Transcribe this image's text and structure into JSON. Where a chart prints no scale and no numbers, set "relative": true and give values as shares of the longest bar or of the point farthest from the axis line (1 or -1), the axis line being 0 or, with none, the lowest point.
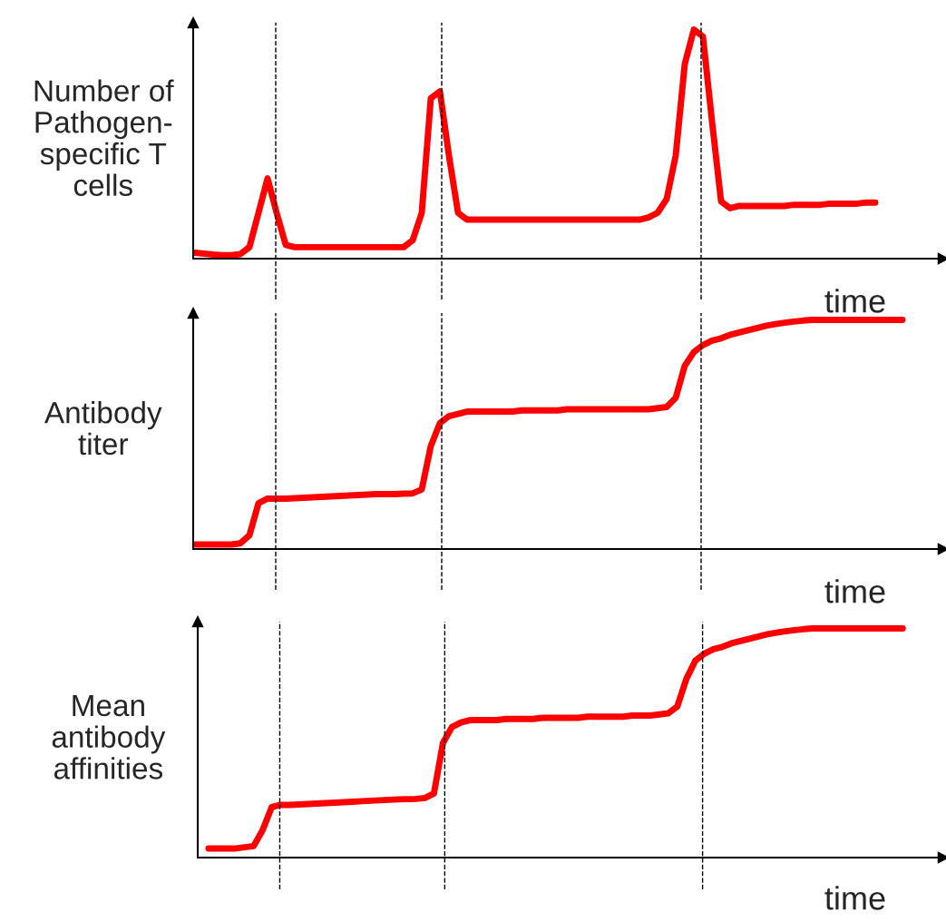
{
  "chart_data": [
    {
      "type": "line",
      "relative": true,
      "ylabel": "Number of\nPathogen-\nspecific T\ncells",
      "xlabel": "time",
      "tick_labels": false,
      "marker": "none",
      "line_style": "solid",
      "categories": [
        null,
        null,
        null,
        null,
        null,
        null,
        null,
        null,
        null,
        null,
        null,
        null,
        null,
        null,
        null,
        null,
        null,
        null,
        null,
        null,
        null,
        null,
        null,
        null,
        null,
        null,
        null,
        null,
        null,
        null,
        null,
        null,
        null,
        null,
        null,
        null,
        null,
        null,
        null,
        null,
        null,
        null,
        null,
        null,
        null,
        null,
        null,
        null,
        null,
        null,
        null,
        null,
        null,
        null,
        null,
        null,
        null,
        null,
        null,
        null,
        null,
        null,
        null,
        null,
        null,
        null,
        null,
        null,
        null,
        null,
        null,
        null,
        null,
        null,
        null,
        null,
        null,
        null,
        null,
        null
      ],
      "series": [
        {
          "color": "#ff0000",
          "values": [
            0.026,
            0.022,
            0.018,
            0.015,
            0.015,
            0.02,
            0.05,
            0.2,
            0.35,
            0.2,
            0.06,
            0.05,
            0.05,
            0.05,
            0.05,
            0.05,
            0.05,
            0.05,
            0.05,
            0.05,
            0.05,
            0.05,
            0.05,
            0.05,
            0.08,
            0.2,
            0.7,
            0.73,
            0.45,
            0.2,
            0.17,
            0.17,
            0.17,
            0.17,
            0.17,
            0.17,
            0.17,
            0.17,
            0.17,
            0.17,
            0.17,
            0.17,
            0.17,
            0.17,
            0.17,
            0.17,
            0.17,
            0.17,
            0.17,
            0.17,
            0.18,
            0.2,
            0.26,
            0.45,
            0.85,
            1.0,
            0.97,
            0.6,
            0.25,
            0.22,
            0.23,
            0.23,
            0.23,
            0.23,
            0.23,
            0.23,
            0.235,
            0.235,
            0.235,
            0.235,
            0.24,
            0.24,
            0.24,
            0.24,
            0.245,
            0.245,
            null,
            null,
            null,
            null
          ]
        }
      ]
    },
    {
      "type": "line",
      "relative": true,
      "ylabel": "Antibody\ntiter",
      "xlabel": "time",
      "tick_labels": false,
      "marker": "none",
      "line_style": "solid",
      "categories": [
        null,
        null,
        null,
        null,
        null,
        null,
        null,
        null,
        null,
        null,
        null,
        null,
        null,
        null,
        null,
        null,
        null,
        null,
        null,
        null,
        null,
        null,
        null,
        null,
        null,
        null,
        null,
        null,
        null,
        null,
        null,
        null,
        null,
        null,
        null,
        null,
        null,
        null,
        null,
        null,
        null,
        null,
        null,
        null,
        null,
        null,
        null,
        null,
        null,
        null,
        null,
        null,
        null,
        null,
        null,
        null,
        null,
        null,
        null,
        null,
        null,
        null,
        null,
        null,
        null,
        null,
        null,
        null,
        null,
        null,
        null,
        null,
        null,
        null,
        null,
        null,
        null,
        null,
        null,
        null
      ],
      "series": [
        {
          "color": "#ff0000",
          "values": [
            0.02,
            0.02,
            0.02,
            0.02,
            0.02,
            0.025,
            0.06,
            0.2,
            0.22,
            0.22,
            0.22,
            0.222,
            0.224,
            0.226,
            0.228,
            0.23,
            0.232,
            0.234,
            0.236,
            0.238,
            0.24,
            0.24,
            0.24,
            0.242,
            0.243,
            0.26,
            0.45,
            0.55,
            0.58,
            0.59,
            0.6,
            0.6,
            0.6,
            0.6,
            0.6,
            0.6,
            0.605,
            0.605,
            0.605,
            0.605,
            0.605,
            0.61,
            0.61,
            0.61,
            0.61,
            0.61,
            0.61,
            0.61,
            0.61,
            0.61,
            0.61,
            0.615,
            0.62,
            0.66,
            0.8,
            0.86,
            0.89,
            0.91,
            0.92,
            0.935,
            0.945,
            0.955,
            0.965,
            0.975,
            0.982,
            0.988,
            0.993,
            0.997,
            1.0,
            1.0,
            1.0,
            1.0,
            1.0,
            1.0,
            1.0,
            1.0,
            1.0,
            1.0,
            1.0,
            null
          ]
        }
      ]
    },
    {
      "type": "line",
      "relative": true,
      "ylabel": "Mean\nantibody\naffinities",
      "xlabel": "time",
      "tick_labels": false,
      "marker": "none",
      "line_style": "solid",
      "categories": [
        null,
        null,
        null,
        null,
        null,
        null,
        null,
        null,
        null,
        null,
        null,
        null,
        null,
        null,
        null,
        null,
        null,
        null,
        null,
        null,
        null,
        null,
        null,
        null,
        null,
        null,
        null,
        null,
        null,
        null,
        null,
        null,
        null,
        null,
        null,
        null,
        null,
        null,
        null,
        null,
        null,
        null,
        null,
        null,
        null,
        null,
        null,
        null,
        null,
        null,
        null,
        null,
        null,
        null,
        null,
        null,
        null,
        null,
        null,
        null,
        null,
        null,
        null,
        null,
        null,
        null,
        null,
        null,
        null,
        null,
        null,
        null,
        null,
        null,
        null,
        null,
        null,
        null,
        null,
        null
      ],
      "series": [
        {
          "color": "#ff0000",
          "values": [
            null,
            0.04,
            0.04,
            0.04,
            0.04,
            0.045,
            0.05,
            0.12,
            0.22,
            0.23,
            0.23,
            0.232,
            0.234,
            0.236,
            0.238,
            0.24,
            0.242,
            0.244,
            0.246,
            0.248,
            0.25,
            0.252,
            0.254,
            0.255,
            0.256,
            0.26,
            0.28,
            0.5,
            0.57,
            0.59,
            0.6,
            0.6,
            0.6,
            0.6,
            0.605,
            0.605,
            0.605,
            0.605,
            0.61,
            0.61,
            0.61,
            0.61,
            0.61,
            0.615,
            0.615,
            0.615,
            0.615,
            0.615,
            0.62,
            0.62,
            0.62,
            0.625,
            0.63,
            0.66,
            0.78,
            0.86,
            0.89,
            0.91,
            0.92,
            0.935,
            0.945,
            0.955,
            0.965,
            0.975,
            0.982,
            0.988,
            0.993,
            0.997,
            1.0,
            1.0,
            1.0,
            1.0,
            1.0,
            1.0,
            1.0,
            1.0,
            1.0,
            1.0,
            1.0,
            null
          ]
        }
      ]
    }
  ]
}
